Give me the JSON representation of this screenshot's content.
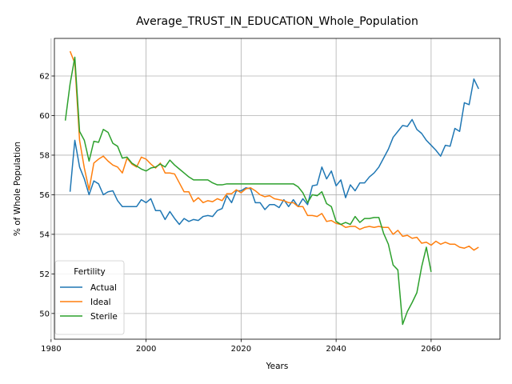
{
  "chart_data": {
    "type": "line",
    "title": "Average_TRUST_IN_EDUCATION_Whole_Population",
    "xlabel": "Years",
    "ylabel": "% of Whole Population",
    "xlim": [
      1980.7,
      2074.5
    ],
    "ylim": [
      48.7,
      63.9
    ],
    "xticks": [
      1980,
      2000,
      2020,
      2040,
      2060
    ],
    "yticks": [
      50,
      52,
      54,
      56,
      58,
      60,
      62
    ],
    "grid": true,
    "legend": {
      "title": "Fertility",
      "placement": "lower-left"
    },
    "colors": {
      "Actual": "#1f77b4",
      "Ideal": "#ff7f0e",
      "Sterile": "#2ca02c"
    },
    "series": [
      {
        "name": "Actual",
        "x": [
          1984,
          1985,
          1986,
          1987,
          1988,
          1989,
          1990,
          1991,
          1992,
          1993,
          1994,
          1995,
          1996,
          1997,
          1998,
          1999,
          2000,
          2001,
          2002,
          2003,
          2004,
          2005,
          2006,
          2007,
          2008,
          2009,
          2010,
          2011,
          2012,
          2013,
          2014,
          2015,
          2016,
          2017,
          2018,
          2019,
          2020,
          2021,
          2022,
          2023,
          2024,
          2025,
          2026,
          2027,
          2028,
          2029,
          2030,
          2031,
          2032,
          2033,
          2034,
          2035,
          2036,
          2037,
          2038,
          2039,
          2040,
          2041,
          2042,
          2043,
          2044,
          2045,
          2046,
          2047,
          2048,
          2049,
          2050,
          2051,
          2052,
          2053,
          2054,
          2055,
          2056,
          2057,
          2058,
          2059,
          2060,
          2061,
          2062,
          2063,
          2064,
          2065,
          2066,
          2067,
          2068,
          2069,
          2070
        ],
        "values": [
          56.15,
          58.75,
          57.4,
          56.8,
          56.0,
          56.7,
          56.55,
          56.0,
          56.15,
          56.2,
          55.7,
          55.4,
          55.4,
          55.4,
          55.4,
          55.75,
          55.6,
          55.8,
          55.2,
          55.2,
          54.75,
          55.15,
          54.8,
          54.5,
          54.8,
          54.65,
          54.75,
          54.7,
          54.9,
          54.95,
          54.9,
          55.2,
          55.3,
          55.95,
          55.6,
          56.2,
          56.2,
          56.35,
          56.3,
          55.6,
          55.6,
          55.25,
          55.5,
          55.5,
          55.35,
          55.75,
          55.4,
          55.75,
          55.4,
          55.8,
          55.5,
          56.45,
          56.5,
          57.4,
          56.8,
          57.2,
          56.45,
          56.75,
          55.85,
          56.5,
          56.2,
          56.6,
          56.6,
          56.9,
          57.1,
          57.4,
          57.85,
          58.3,
          58.9,
          59.2,
          59.5,
          59.45,
          59.8,
          59.3,
          59.1,
          58.75,
          58.5,
          58.25,
          57.95,
          58.5,
          58.45,
          59.35,
          59.2,
          60.65,
          60.55,
          61.85,
          61.35
        ]
      },
      {
        "name": "Ideal",
        "x": [
          1984,
          1985,
          1986,
          1987,
          1988,
          1989,
          1990,
          1991,
          1992,
          1993,
          1994,
          1995,
          1996,
          1997,
          1998,
          1999,
          2000,
          2001,
          2002,
          2003,
          2004,
          2005,
          2006,
          2007,
          2008,
          2009,
          2010,
          2011,
          2012,
          2013,
          2014,
          2015,
          2016,
          2017,
          2018,
          2019,
          2020,
          2021,
          2022,
          2023,
          2024,
          2025,
          2026,
          2027,
          2028,
          2029,
          2030,
          2031,
          2032,
          2033,
          2034,
          2035,
          2036,
          2037,
          2038,
          2039,
          2040,
          2041,
          2042,
          2043,
          2044,
          2045,
          2046,
          2047,
          2048,
          2049,
          2050,
          2051,
          2052,
          2053,
          2054,
          2055,
          2056,
          2057,
          2058,
          2059,
          2060,
          2061,
          2062,
          2063,
          2064,
          2065,
          2066,
          2067,
          2068,
          2069,
          2070
        ],
        "values": [
          63.25,
          62.65,
          58.75,
          57.35,
          56.25,
          57.6,
          57.8,
          57.95,
          57.7,
          57.5,
          57.4,
          57.1,
          57.85,
          57.55,
          57.4,
          57.9,
          57.8,
          57.55,
          57.35,
          57.6,
          57.1,
          57.1,
          57.05,
          56.6,
          56.15,
          56.15,
          55.65,
          55.85,
          55.6,
          55.7,
          55.65,
          55.8,
          55.7,
          56.05,
          56.05,
          56.25,
          56.1,
          56.3,
          56.35,
          56.2,
          56.0,
          55.9,
          55.95,
          55.8,
          55.75,
          55.7,
          55.6,
          55.6,
          55.4,
          55.4,
          54.95,
          54.95,
          54.9,
          55.05,
          54.65,
          54.7,
          54.55,
          54.5,
          54.35,
          54.4,
          54.4,
          54.25,
          54.35,
          54.4,
          54.35,
          54.4,
          54.35,
          54.35,
          54.0,
          54.2,
          53.9,
          53.95,
          53.8,
          53.85,
          53.55,
          53.6,
          53.45,
          53.65,
          53.5,
          53.6,
          53.5,
          53.5,
          53.35,
          53.3,
          53.4,
          53.2,
          53.35
        ]
      },
      {
        "name": "Sterile",
        "x": [
          1983,
          1984,
          1985,
          1986,
          1987,
          1988,
          1989,
          1990,
          1991,
          1992,
          1993,
          1994,
          1995,
          1996,
          1997,
          1998,
          1999,
          2000,
          2001,
          2002,
          2003,
          2004,
          2005,
          2006,
          2007,
          2008,
          2009,
          2010,
          2011,
          2012,
          2013,
          2014,
          2015,
          2016,
          2017,
          2018,
          2019,
          2020,
          2021,
          2022,
          2023,
          2024,
          2025,
          2026,
          2027,
          2028,
          2029,
          2030,
          2031,
          2032,
          2033,
          2034,
          2035,
          2036,
          2037,
          2038,
          2039,
          2040,
          2041,
          2042,
          2043,
          2044,
          2045,
          2046,
          2047,
          2048,
          2049,
          2050,
          2051,
          2052,
          2053,
          2054,
          2055,
          2056,
          2057,
          2058,
          2059,
          2060
        ],
        "values": [
          59.75,
          61.6,
          62.95,
          59.2,
          58.75,
          57.7,
          58.7,
          58.65,
          59.3,
          59.15,
          58.6,
          58.45,
          57.85,
          57.9,
          57.6,
          57.45,
          57.3,
          57.2,
          57.35,
          57.4,
          57.55,
          57.4,
          57.75,
          57.5,
          57.3,
          57.1,
          56.9,
          56.75,
          56.75,
          56.75,
          56.75,
          56.6,
          56.5,
          56.5,
          56.55,
          56.55,
          56.55,
          56.55,
          56.55,
          56.55,
          56.55,
          56.55,
          56.55,
          56.55,
          56.55,
          56.55,
          56.55,
          56.55,
          56.55,
          56.4,
          56.1,
          55.6,
          56.0,
          55.95,
          56.15,
          55.55,
          55.4,
          54.65,
          54.5,
          54.6,
          54.5,
          54.9,
          54.6,
          54.8,
          54.8,
          54.85,
          54.85,
          54.05,
          53.5,
          52.45,
          52.2,
          49.45,
          50.1,
          50.55,
          51.05,
          52.35,
          53.35,
          52.1
        ]
      }
    ]
  }
}
